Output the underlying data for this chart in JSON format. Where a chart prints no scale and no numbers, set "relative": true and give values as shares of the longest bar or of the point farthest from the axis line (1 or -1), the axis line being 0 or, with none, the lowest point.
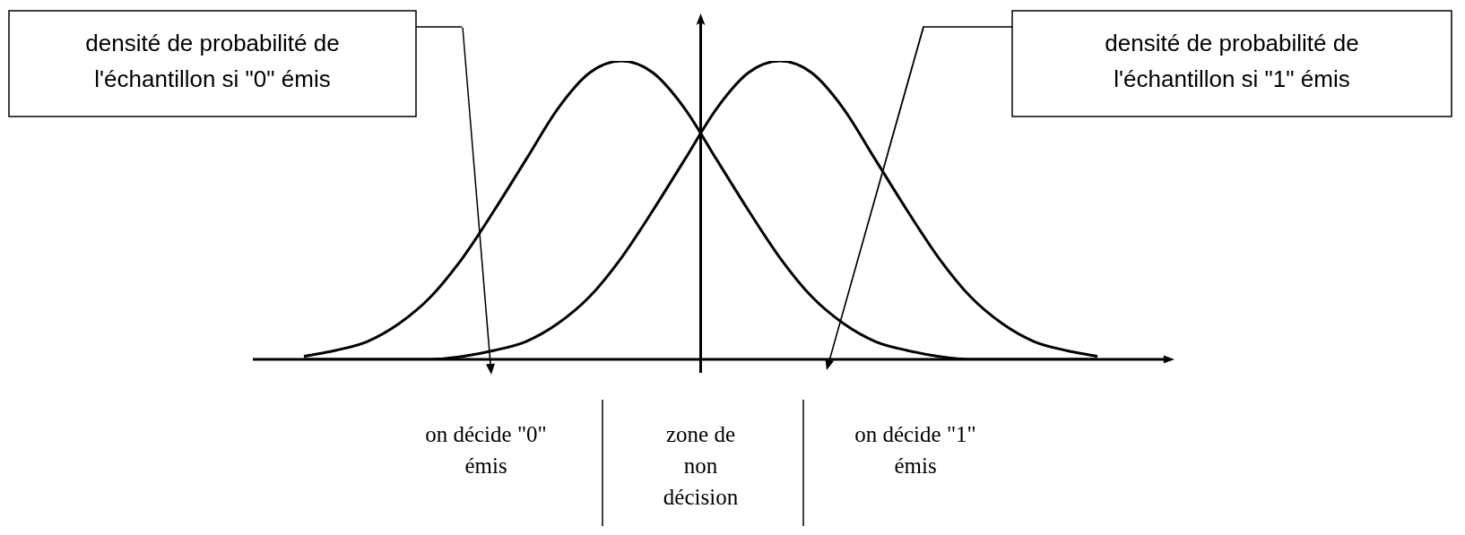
{
  "chart_data": {
    "type": "line",
    "relative": true,
    "marker": "none",
    "grid": false,
    "legend": false,
    "categories": [
      null,
      null,
      null,
      null,
      null,
      null,
      null,
      null,
      null,
      null,
      null,
      null,
      null,
      null,
      null,
      null,
      null,
      null,
      null,
      null,
      null,
      null,
      null,
      null,
      null,
      null
    ],
    "series": [
      {
        "color": "#000000",
        "values": [
          0.01,
          0.03,
          0.06,
          0.12,
          0.21,
          0.34,
          0.5,
          0.67,
          0.84,
          0.96,
          1,
          0.96,
          0.84,
          0.67,
          0.5,
          0.34,
          0.21,
          0.12,
          0.06,
          0.03,
          0.01,
          0,
          0,
          0,
          0,
          0
        ]
      },
      {
        "color": "#000000",
        "values": [
          0,
          0,
          0,
          0,
          0,
          0.01,
          0.03,
          0.06,
          0.12,
          0.21,
          0.34,
          0.5,
          0.67,
          0.84,
          0.96,
          1,
          0.96,
          0.84,
          0.67,
          0.5,
          0.34,
          0.21,
          0.12,
          0.06,
          0.03,
          0.01
        ]
      }
    ],
    "annotations": [
      "densité de probabilité de\nl'échantillon si \"0\" émis",
      "densité de probabilité de\nl'échantillon si \"1\" émis",
      "on décide \"0\"\némis",
      "zone de\nnon\ndécision",
      "on décide \"1\"\némis"
    ]
  }
}
